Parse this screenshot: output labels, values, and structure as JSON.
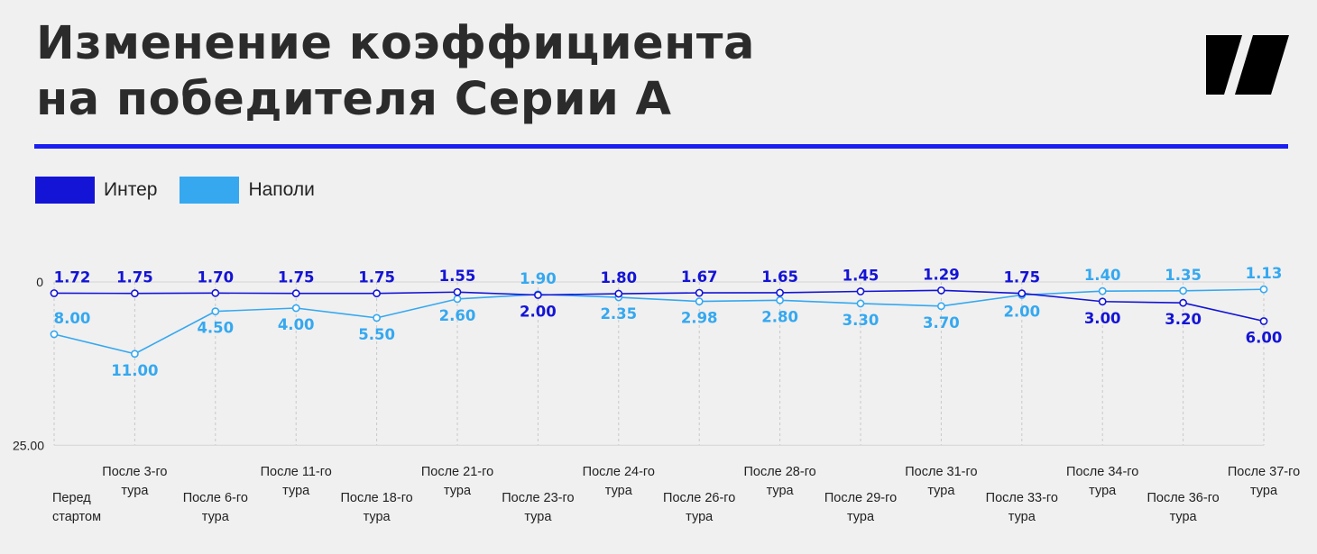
{
  "header": {
    "title_line1": "Изменение коэффициента",
    "title_line2": "на победителя Серии А"
  },
  "logo": {
    "icon": "brand-logo"
  },
  "colors": {
    "inter": "#1414d6",
    "napoli": "#35a8f0",
    "accent": "#1b1ef0"
  },
  "chart_data": {
    "type": "line",
    "categories": [
      [
        "Перед",
        "стартом"
      ],
      [
        "После 3-го",
        "тура"
      ],
      [
        "После 6-го",
        "тура"
      ],
      [
        "После 11-го",
        "тура"
      ],
      [
        "После 18-го",
        "тура"
      ],
      [
        "После 21-го",
        "тура"
      ],
      [
        "После 23-го",
        "тура"
      ],
      [
        "После 24-го",
        "тура"
      ],
      [
        "После 26-го",
        "тура"
      ],
      [
        "После 28-го",
        "тура"
      ],
      [
        "После 29-го",
        "тура"
      ],
      [
        "После 31-го",
        "тура"
      ],
      [
        "После 33-го",
        "тура"
      ],
      [
        "После 34-го",
        "тура"
      ],
      [
        "После 36-го",
        "тура"
      ],
      [
        "После 37-го",
        "тура"
      ]
    ],
    "series": [
      {
        "name": "Интер",
        "color": "#1414d6",
        "values": [
          1.72,
          1.75,
          1.7,
          1.75,
          1.75,
          1.55,
          2.0,
          1.8,
          1.67,
          1.65,
          1.45,
          1.29,
          1.75,
          3.0,
          3.2,
          6.0
        ],
        "labels": [
          "1.72",
          "1.75",
          "1.70",
          "1.75",
          "1.75",
          "1.55",
          "2.00",
          "1.80",
          "1.67",
          "1.65",
          "1.45",
          "1.29",
          "1.75",
          "3.00",
          "3.20",
          "6.00"
        ]
      },
      {
        "name": "Наполи",
        "color": "#35a8f0",
        "values": [
          8.0,
          11.0,
          4.5,
          4.0,
          5.5,
          2.6,
          1.9,
          2.35,
          2.98,
          2.8,
          3.3,
          3.7,
          2.0,
          1.4,
          1.35,
          1.13
        ],
        "labels": [
          "8.00",
          "11.00",
          "4.50",
          "4.00",
          "5.50",
          "2.60",
          "1.90",
          "2.35",
          "2.98",
          "2.80",
          "3.30",
          "3.70",
          "2.00",
          "1.40",
          "1.35",
          "1.13"
        ]
      }
    ],
    "ylim": [
      0,
      25
    ],
    "ytick_labels": [
      "0",
      "25.00"
    ],
    "inverted_y": true,
    "grid": "vertical-dashed",
    "legend_position": "top-left"
  }
}
